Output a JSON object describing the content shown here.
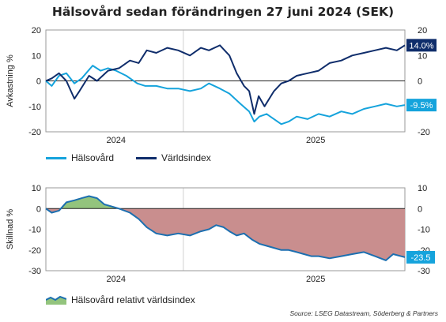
{
  "title": "Hälsovård sedan förändringen 27 juni 2024 (SEK)",
  "source": "Source: LSEG Datastream, Söderberg & Partners",
  "colors": {
    "halso": "#15a3dc",
    "varld": "#0f2d6b",
    "pos_fill": "#93c47d",
    "neg_fill": "#c98e8e",
    "rel_line": "#1c6fb0"
  },
  "chart_data": [
    {
      "type": "line",
      "ylabel": "Avkastning %",
      "ylim": [
        -20,
        20
      ],
      "yticks": [
        20,
        10,
        0,
        -10,
        -20
      ],
      "xticks": [
        "2024",
        "2025"
      ],
      "x_range": [
        "2024-06-27",
        "2025-10-31"
      ],
      "series": [
        {
          "name": "Hälsovård",
          "end_label": "-9.5%",
          "points": [
            [
              "2024-06-27",
              0
            ],
            [
              "2024-07-05",
              -2
            ],
            [
              "2024-07-15",
              2
            ],
            [
              "2024-07-25",
              3
            ],
            [
              "2024-08-05",
              -1
            ],
            [
              "2024-08-15",
              1
            ],
            [
              "2024-08-30",
              6
            ],
            [
              "2024-09-10",
              4
            ],
            [
              "2024-09-20",
              5
            ],
            [
              "2024-10-01",
              4
            ],
            [
              "2024-10-15",
              2
            ],
            [
              "2024-10-30",
              -1
            ],
            [
              "2024-11-10",
              -2
            ],
            [
              "2024-11-25",
              -2
            ],
            [
              "2024-12-10",
              -3
            ],
            [
              "2024-12-25",
              -3
            ],
            [
              "2025-01-10",
              -4
            ],
            [
              "2025-01-25",
              -3
            ],
            [
              "2025-02-05",
              -1
            ],
            [
              "2025-02-20",
              -3
            ],
            [
              "2025-03-05",
              -5
            ],
            [
              "2025-03-20",
              -9
            ],
            [
              "2025-04-01",
              -12
            ],
            [
              "2025-04-08",
              -16
            ],
            [
              "2025-04-15",
              -14
            ],
            [
              "2025-04-25",
              -13
            ],
            [
              "2025-05-05",
              -15
            ],
            [
              "2025-05-15",
              -17
            ],
            [
              "2025-05-25",
              -16
            ],
            [
              "2025-06-05",
              -14
            ],
            [
              "2025-06-20",
              -15
            ],
            [
              "2025-07-05",
              -13
            ],
            [
              "2025-07-20",
              -14
            ],
            [
              "2025-08-05",
              -12
            ],
            [
              "2025-08-20",
              -13
            ],
            [
              "2025-09-05",
              -11
            ],
            [
              "2025-09-20",
              -10
            ],
            [
              "2025-10-05",
              -9
            ],
            [
              "2025-10-20",
              -10
            ],
            [
              "2025-10-31",
              -9.5
            ]
          ]
        },
        {
          "name": "Världsindex",
          "end_label": "14.0%",
          "points": [
            [
              "2024-06-27",
              0
            ],
            [
              "2024-07-05",
              1
            ],
            [
              "2024-07-15",
              3
            ],
            [
              "2024-07-25",
              0
            ],
            [
              "2024-08-05",
              -7
            ],
            [
              "2024-08-12",
              -4
            ],
            [
              "2024-08-25",
              2
            ],
            [
              "2024-09-05",
              0
            ],
            [
              "2024-09-20",
              4
            ],
            [
              "2024-10-05",
              5
            ],
            [
              "2024-10-20",
              8
            ],
            [
              "2024-11-01",
              7
            ],
            [
              "2024-11-12",
              12
            ],
            [
              "2024-11-25",
              11
            ],
            [
              "2024-12-10",
              13
            ],
            [
              "2024-12-25",
              12
            ],
            [
              "2025-01-10",
              10
            ],
            [
              "2025-01-25",
              13
            ],
            [
              "2025-02-05",
              12
            ],
            [
              "2025-02-20",
              14
            ],
            [
              "2025-03-05",
              10
            ],
            [
              "2025-03-15",
              3
            ],
            [
              "2025-03-25",
              -2
            ],
            [
              "2025-04-01",
              -4
            ],
            [
              "2025-04-08",
              -13
            ],
            [
              "2025-04-14",
              -6
            ],
            [
              "2025-04-22",
              -10
            ],
            [
              "2025-05-05",
              -4
            ],
            [
              "2025-05-15",
              -1
            ],
            [
              "2025-05-25",
              0
            ],
            [
              "2025-06-05",
              2
            ],
            [
              "2025-06-20",
              3
            ],
            [
              "2025-07-05",
              4
            ],
            [
              "2025-07-20",
              7
            ],
            [
              "2025-08-05",
              8
            ],
            [
              "2025-08-20",
              10
            ],
            [
              "2025-09-05",
              11
            ],
            [
              "2025-09-20",
              12
            ],
            [
              "2025-10-05",
              13
            ],
            [
              "2025-10-20",
              12
            ],
            [
              "2025-10-31",
              14
            ]
          ]
        }
      ]
    },
    {
      "type": "area",
      "ylabel": "Skillnad %",
      "ylim": [
        -30,
        10
      ],
      "yticks": [
        10,
        0,
        -10,
        -20,
        -30
      ],
      "xticks": [
        "2024",
        "2025"
      ],
      "x_range": [
        "2024-06-27",
        "2025-10-31"
      ],
      "series": [
        {
          "name": "Hälsovård relativt världsindex",
          "end_label": "-23.5",
          "points": [
            [
              "2024-06-27",
              0
            ],
            [
              "2024-07-05",
              -2
            ],
            [
              "2024-07-15",
              -1
            ],
            [
              "2024-07-25",
              3
            ],
            [
              "2024-08-05",
              4
            ],
            [
              "2024-08-15",
              5
            ],
            [
              "2024-08-25",
              6
            ],
            [
              "2024-09-05",
              5
            ],
            [
              "2024-09-15",
              2
            ],
            [
              "2024-09-25",
              1
            ],
            [
              "2024-10-05",
              0
            ],
            [
              "2024-10-20",
              -2
            ],
            [
              "2024-11-01",
              -5
            ],
            [
              "2024-11-12",
              -9
            ],
            [
              "2024-11-25",
              -12
            ],
            [
              "2024-12-10",
              -13
            ],
            [
              "2024-12-25",
              -12
            ],
            [
              "2025-01-10",
              -13
            ],
            [
              "2025-01-25",
              -11
            ],
            [
              "2025-02-05",
              -10
            ],
            [
              "2025-02-15",
              -8
            ],
            [
              "2025-02-25",
              -9
            ],
            [
              "2025-03-05",
              -11
            ],
            [
              "2025-03-15",
              -13
            ],
            [
              "2025-03-25",
              -12
            ],
            [
              "2025-04-05",
              -15
            ],
            [
              "2025-04-15",
              -17
            ],
            [
              "2025-04-25",
              -18
            ],
            [
              "2025-05-05",
              -19
            ],
            [
              "2025-05-15",
              -20
            ],
            [
              "2025-05-25",
              -20
            ],
            [
              "2025-06-05",
              -21
            ],
            [
              "2025-06-15",
              -22
            ],
            [
              "2025-06-25",
              -23
            ],
            [
              "2025-07-05",
              -23
            ],
            [
              "2025-07-20",
              -24
            ],
            [
              "2025-08-05",
              -23
            ],
            [
              "2025-08-20",
              -22
            ],
            [
              "2025-09-05",
              -21
            ],
            [
              "2025-09-20",
              -23
            ],
            [
              "2025-10-05",
              -25
            ],
            [
              "2025-10-15",
              -22
            ],
            [
              "2025-10-31",
              -23.5
            ]
          ]
        }
      ]
    }
  ]
}
